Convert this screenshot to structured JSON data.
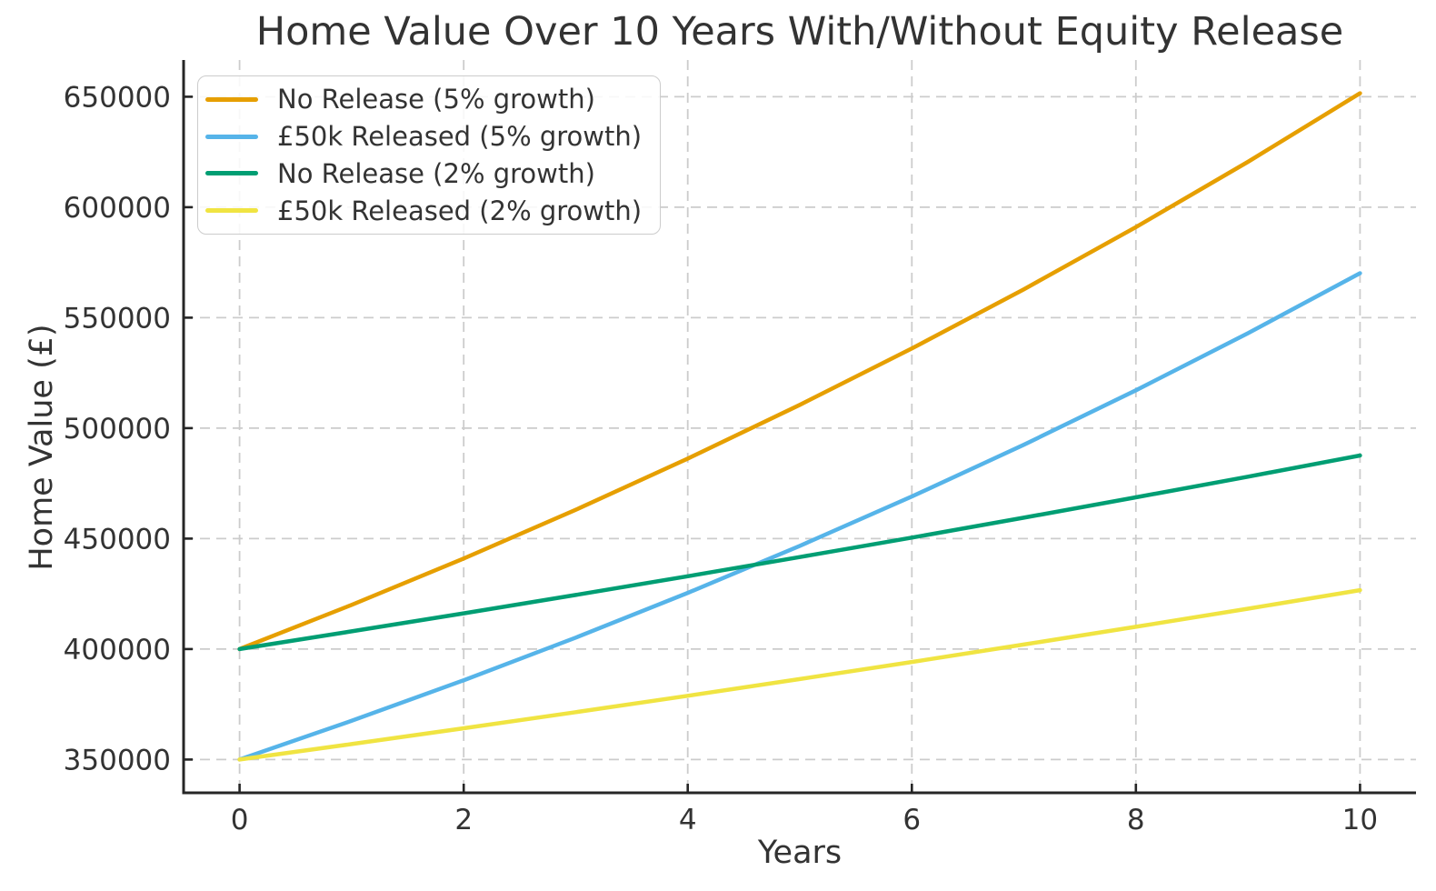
{
  "chart_data": {
    "type": "line",
    "title": "Home Value Over 10 Years With/Without Equity Release",
    "xlabel": "Years",
    "ylabel": "Home Value (£)",
    "x": [
      0,
      1,
      2,
      3,
      4,
      5,
      6,
      7,
      8,
      9,
      10
    ],
    "series": [
      {
        "name": "No Release (5% growth)",
        "color": "#E69F00",
        "values": [
          400000,
          420000,
          441000,
          463050,
          486203,
          510513,
          536038,
          562840,
          590982,
          620531,
          651558
        ]
      },
      {
        "name": "£50k Released (5% growth)",
        "color": "#56B4E9",
        "values": [
          350000,
          367500,
          385875,
          405169,
          425427,
          446699,
          469033,
          492485,
          517109,
          542965,
          570113
        ]
      },
      {
        "name": "No Release (2% growth)",
        "color": "#009E73",
        "values": [
          400000,
          408000,
          416160,
          424483,
          432973,
          441632,
          450465,
          459474,
          468664,
          478037,
          487598
        ]
      },
      {
        "name": "£50k Released (2% growth)",
        "color": "#F0E442",
        "values": [
          350000,
          357000,
          364140,
          371423,
          378851,
          386428,
          394157,
          402040,
          410081,
          418282,
          426648
        ]
      }
    ],
    "xticks": [
      0,
      2,
      4,
      6,
      8,
      10
    ],
    "yticks": [
      350000,
      400000,
      450000,
      500000,
      550000,
      600000,
      650000
    ],
    "xlim": [
      -0.5,
      10.5
    ],
    "ylim": [
      334922,
      666636
    ],
    "grid": true,
    "grid_style": "dashed",
    "legend_position": "upper left",
    "tick_direction": "in",
    "axis_color": "#262626",
    "grid_color": "#cccccc",
    "text_color": "#333333",
    "background_color": "#ffffff"
  }
}
